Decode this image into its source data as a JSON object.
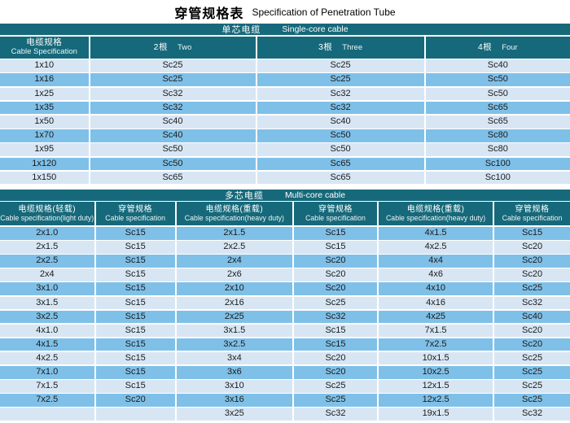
{
  "title": {
    "zh": "穿管规格表",
    "en": "Specification of Penetration Tube"
  },
  "colors": {
    "header_teal": "#16697a",
    "row_light": "#d8e6f4",
    "row_medium": "#7fc0e8",
    "grid_line": "#ffffff",
    "text": "#1b1b1b"
  },
  "single_core": {
    "section": {
      "zh": "单芯电缆",
      "en": "Single-core cable"
    },
    "columns": [
      {
        "zh": "电缆规格",
        "en": "Cable Specification"
      },
      {
        "zh": "2根",
        "en": "Two"
      },
      {
        "zh": "3根",
        "en": "Three"
      },
      {
        "zh": "4根",
        "en": "Four"
      }
    ],
    "rows": [
      [
        "1x10",
        "Sc25",
        "Sc25",
        "Sc40"
      ],
      [
        "1x16",
        "Sc25",
        "Sc25",
        "Sc50"
      ],
      [
        "1x25",
        "Sc32",
        "Sc32",
        "Sc50"
      ],
      [
        "1x35",
        "Sc32",
        "Sc32",
        "Sc65"
      ],
      [
        "1x50",
        "Sc40",
        "Sc40",
        "Sc65"
      ],
      [
        "1x70",
        "Sc40",
        "Sc50",
        "Sc80"
      ],
      [
        "1x95",
        "Sc50",
        "Sc50",
        "Sc80"
      ],
      [
        "1x120",
        "Sc50",
        "Sc65",
        "Sc100"
      ],
      [
        "1x150",
        "Sc65",
        "Sc65",
        "Sc100"
      ]
    ]
  },
  "multi_core": {
    "section": {
      "zh": "多芯电缆",
      "en": "Multi-core cable"
    },
    "columns": [
      {
        "zh": "电缆规格(轻载)",
        "en": "Cable specification(light duty)"
      },
      {
        "zh": "穿管规格",
        "en": "Cable specification"
      },
      {
        "zh": "电缆规格(重载)",
        "en": "Cable specification(heavy duty)"
      },
      {
        "zh": "穿管规格",
        "en": "Cable specification"
      },
      {
        "zh": "电缆规格(重载)",
        "en": "Cable specification(heavy duty)"
      },
      {
        "zh": "穿管规格",
        "en": "Cable specification"
      }
    ],
    "rows": [
      [
        "2x1.0",
        "Sc15",
        "2x1.5",
        "Sc15",
        "4x1.5",
        "Sc15"
      ],
      [
        "2x1.5",
        "Sc15",
        "2x2.5",
        "Sc15",
        "4x2.5",
        "Sc20"
      ],
      [
        "2x2.5",
        "Sc15",
        "2x4",
        "Sc20",
        "4x4",
        "Sc20"
      ],
      [
        "2x4",
        "Sc15",
        "2x6",
        "Sc20",
        "4x6",
        "Sc20"
      ],
      [
        "3x1.0",
        "Sc15",
        "2x10",
        "Sc20",
        "4x10",
        "Sc25"
      ],
      [
        "3x1.5",
        "Sc15",
        "2x16",
        "Sc25",
        "4x16",
        "Sc32"
      ],
      [
        "3x2.5",
        "Sc15",
        "2x25",
        "Sc32",
        "4x25",
        "Sc40"
      ],
      [
        "4x1.0",
        "Sc15",
        "3x1.5",
        "Sc15",
        "7x1.5",
        "Sc20"
      ],
      [
        "4x1.5",
        "Sc15",
        "3x2.5",
        "Sc15",
        "7x2.5",
        "Sc20"
      ],
      [
        "4x2.5",
        "Sc15",
        "3x4",
        "Sc20",
        "10x1.5",
        "Sc25"
      ],
      [
        "7x1.0",
        "Sc15",
        "3x6",
        "Sc20",
        "10x2.5",
        "Sc25"
      ],
      [
        "7x1.5",
        "Sc15",
        "3x10",
        "Sc25",
        "12x1.5",
        "Sc25"
      ],
      [
        "7x2.5",
        "Sc20",
        "3x16",
        "Sc25",
        "12x2.5",
        "Sc25"
      ],
      [
        "",
        "",
        "3x25",
        "Sc32",
        "19x1.5",
        "Sc32"
      ]
    ]
  }
}
